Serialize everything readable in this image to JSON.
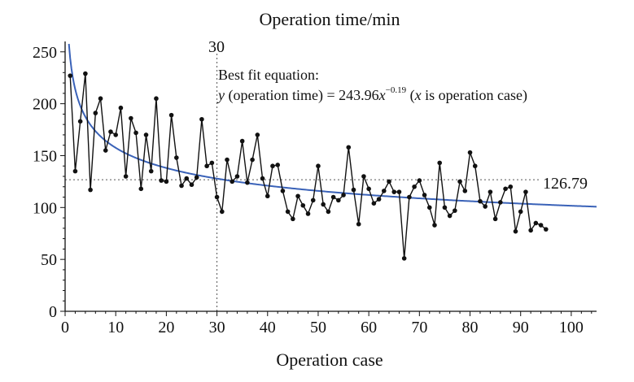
{
  "chart_data": {
    "type": "scatter",
    "title": "Operation time/min",
    "xlabel": "Operation case",
    "ylabel": "",
    "xlim": [
      0,
      105
    ],
    "ylim": [
      0,
      260
    ],
    "x_ticks": [
      0,
      10,
      20,
      30,
      40,
      50,
      60,
      70,
      80,
      90,
      100
    ],
    "y_ticks": [
      0,
      50,
      100,
      150,
      200,
      250
    ],
    "grid": false,
    "series": [
      {
        "style": "line-with-markers",
        "color": "#111111",
        "x": [
          1,
          2,
          3,
          4,
          5,
          6,
          7,
          8,
          9,
          10,
          11,
          12,
          13,
          14,
          15,
          16,
          17,
          18,
          19,
          20,
          21,
          22,
          23,
          24,
          25,
          26,
          27,
          28,
          29,
          30,
          31,
          32,
          33,
          34,
          35,
          36,
          37,
          38,
          39,
          40,
          41,
          42,
          43,
          44,
          45,
          46,
          47,
          48,
          49,
          50,
          51,
          52,
          53,
          54,
          55,
          56,
          57,
          58,
          59,
          60,
          61,
          62,
          63,
          64,
          65,
          66,
          67,
          68,
          69,
          70,
          71,
          72,
          73,
          74,
          75,
          76,
          77,
          78,
          79,
          80,
          81,
          82,
          83,
          84,
          85,
          86,
          87,
          88,
          89,
          90,
          91,
          92,
          93,
          94,
          95
        ],
        "y": [
          227,
          135,
          183,
          229,
          117,
          191,
          205,
          155,
          173,
          170,
          196,
          130,
          186,
          172,
          118,
          170,
          135,
          205,
          126,
          125,
          189,
          148,
          121,
          128,
          122,
          129,
          185,
          140,
          143,
          110,
          96,
          146,
          125,
          130,
          164,
          124,
          146,
          170,
          128,
          111,
          140,
          141,
          116,
          96,
          89,
          111,
          102,
          94,
          107,
          140,
          103,
          96,
          110,
          107,
          112,
          158,
          117,
          84,
          130,
          118,
          104,
          108,
          116,
          125,
          115,
          115,
          51,
          110,
          120,
          126,
          112,
          100,
          83,
          143,
          100,
          92,
          97,
          125,
          116,
          153,
          140,
          106,
          101,
          115,
          89,
          105,
          118,
          120,
          77,
          96,
          115,
          78,
          85,
          83,
          79
        ]
      },
      {
        "style": "fit-curve",
        "color": "#3a62b8",
        "equation": {
          "a": 243.96,
          "b": -0.19
        }
      }
    ],
    "annotations": {
      "vline_label": "30",
      "vline_x": 30,
      "hline_label": "126.79",
      "hline_y": 126.79,
      "equation_line1": "Best fit equation:",
      "eq_y": "y",
      "eq_text1": " (operation time) = 243.96",
      "eq_x": "x",
      "eq_exp": "−0.19",
      "eq_text2": " (",
      "eq_x2": "x",
      "eq_text3": " is operation case)"
    }
  }
}
